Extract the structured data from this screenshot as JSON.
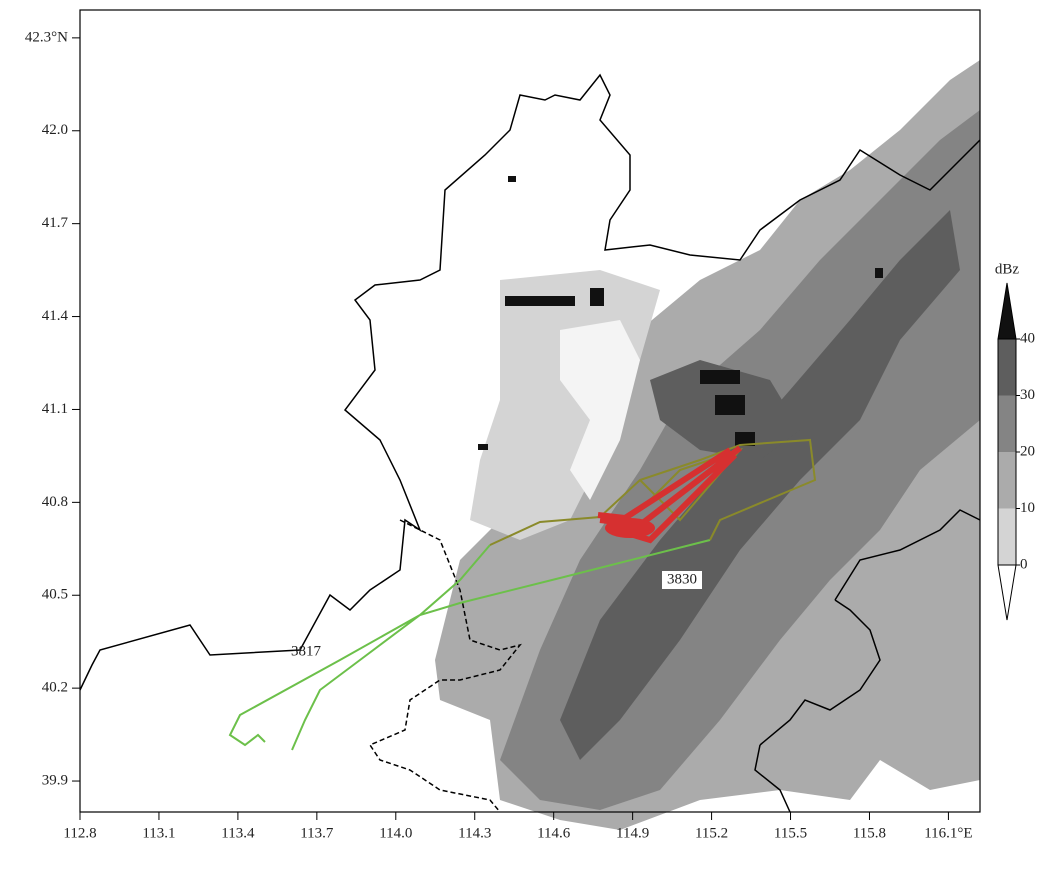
{
  "map": {
    "xlim": [
      112.8,
      116.22
    ],
    "ylim": [
      39.8,
      42.39
    ],
    "xticks": [
      112.8,
      113.1,
      113.4,
      113.7,
      {
        "value": 114,
        "label": "114.0"
      },
      114.3,
      114.6,
      114.9,
      115.2,
      115.5,
      115.8,
      {
        "value": 116.1,
        "label": "116.1°E"
      }
    ],
    "yticks": [
      39.9,
      40.2,
      40.5,
      40.8,
      41.1,
      41.4,
      41.7,
      {
        "value": 42,
        "label": "42.0"
      },
      {
        "value": 42.3,
        "label": "42.3°N"
      }
    ],
    "colorbar": {
      "label": "dBz",
      "lim": [
        0,
        40
      ],
      "ticks": [
        0,
        10,
        20,
        30,
        40
      ],
      "colors": [
        "#d4d4d4",
        "#ababab",
        "#848484",
        "#5e5e5e"
      ],
      "over_color": "#111111",
      "under_color": "#ffffff"
    },
    "tracks": [
      {
        "name": "3817",
        "color": "#6cc04a"
      },
      {
        "name": "3830",
        "color": "#8a8a2a"
      }
    ]
  }
}
